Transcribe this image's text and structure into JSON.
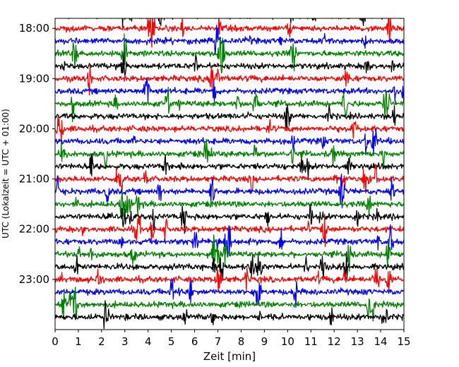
{
  "chart_data": {
    "type": "line",
    "title": "",
    "xlabel": "Zeit  [min]",
    "ylabel": "UTC (Lokalzeit = UTC + 01:00)",
    "xlim": [
      0,
      15
    ],
    "x_ticks": [
      "0",
      "1",
      "2",
      "3",
      "4",
      "5",
      "6",
      "7",
      "8",
      "9",
      "10",
      "11",
      "12",
      "13",
      "14",
      "15"
    ],
    "y_ticks": [
      "18:00",
      "19:00",
      "20:00",
      "21:00",
      "22:00",
      "23:00"
    ],
    "ylim": [
      "17:48",
      "24:00"
    ],
    "trace_minutes": 15,
    "trace_start": "17:45",
    "trace_end": "23:45",
    "color_cycle": [
      "#000000",
      "#ff0000",
      "#0000ff",
      "#008000"
    ],
    "grid": false,
    "legend": "none"
  }
}
